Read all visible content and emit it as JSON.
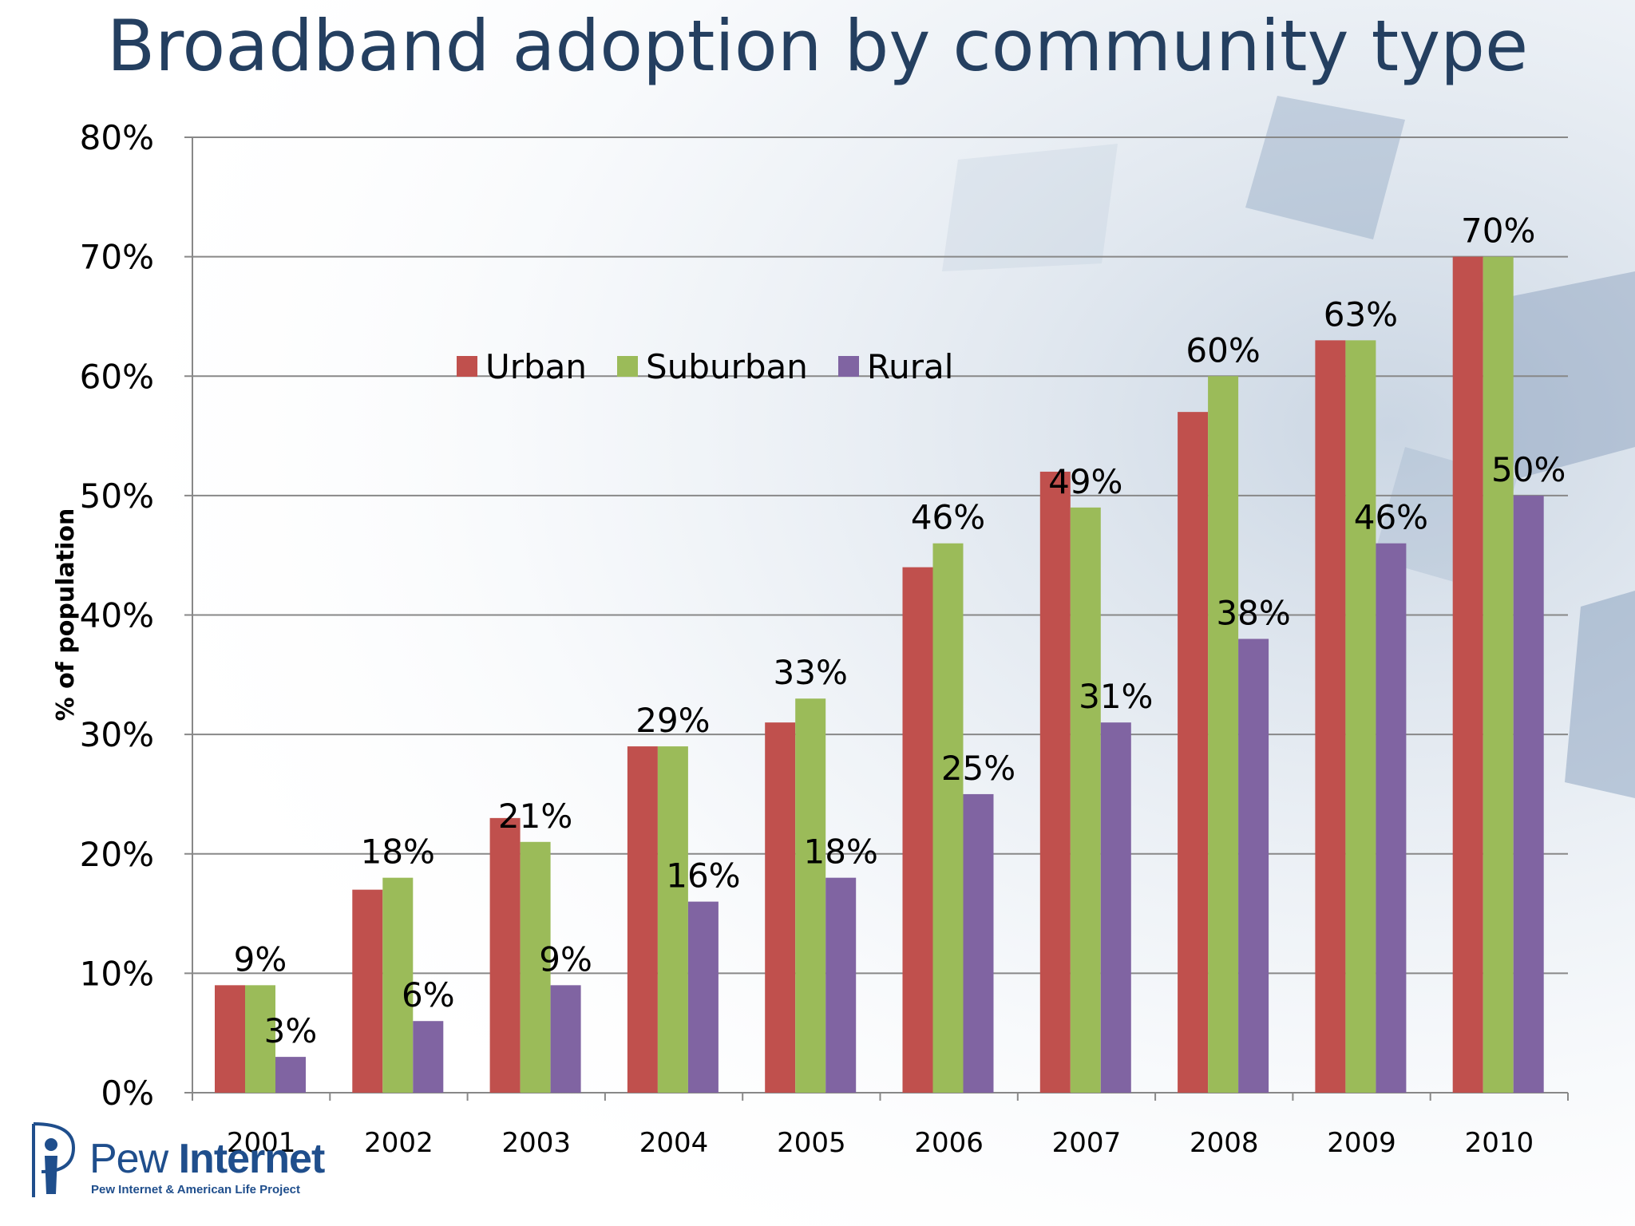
{
  "page_title": "Broadband adoption by community type",
  "chart_data": {
    "type": "bar",
    "title": "Broadband adoption by community type",
    "xlabel": "",
    "ylabel": "% of population",
    "categories": [
      "2001",
      "2002",
      "2003",
      "2004",
      "2005",
      "2006",
      "2007",
      "2008",
      "2009",
      "2010"
    ],
    "series": [
      {
        "name": "Urban",
        "color": "#c0504d",
        "values": [
          9,
          17,
          23,
          29,
          31,
          44,
          52,
          57,
          63,
          70
        ],
        "labels": []
      },
      {
        "name": "Suburban",
        "color": "#9bbb59",
        "values": [
          9,
          18,
          21,
          29,
          33,
          46,
          49,
          60,
          63,
          70
        ],
        "labels": [
          "9%",
          "18%",
          "21%",
          "29%",
          "33%",
          "46%",
          "49%",
          "60%",
          "63%",
          "70%"
        ]
      },
      {
        "name": "Rural",
        "color": "#8064a2",
        "values": [
          3,
          6,
          9,
          16,
          18,
          25,
          31,
          38,
          46,
          50
        ],
        "labels": [
          "3%",
          "6%",
          "9%",
          "16%",
          "18%",
          "25%",
          "31%",
          "38%",
          "46%",
          "50%"
        ]
      }
    ],
    "yticks": [
      "0%",
      "10%",
      "20%",
      "30%",
      "40%",
      "50%",
      "60%",
      "70%",
      "80%"
    ],
    "ylim": [
      0,
      80
    ],
    "grid": true,
    "legend_placement": "top-center"
  },
  "logo": {
    "word_light": "Pew ",
    "word_bold": "Internet",
    "subtitle": "Pew Internet & American Life Project"
  }
}
